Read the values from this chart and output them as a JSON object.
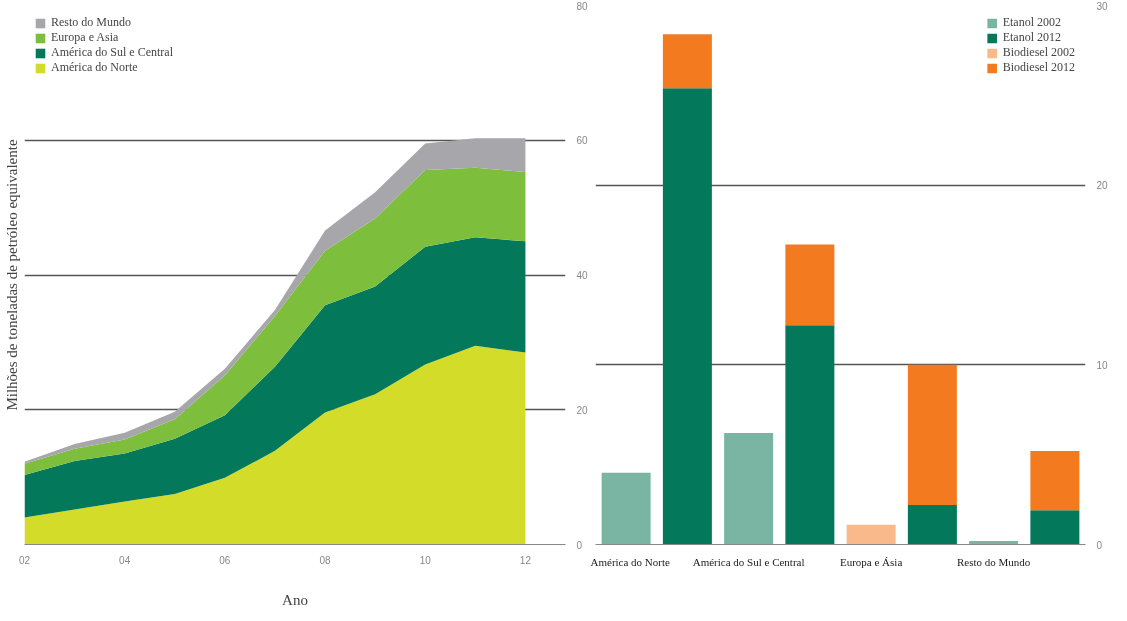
{
  "chart_data": [
    {
      "type": "area",
      "stacked": true,
      "xlabel": "Ano",
      "ylabel": "Milhões de toneladas de petróleo equivalente",
      "x": [
        2002,
        2003,
        2004,
        2005,
        2006,
        2007,
        2008,
        2009,
        2010,
        2011,
        2012
      ],
      "xlim": [
        2002,
        2012.8
      ],
      "xticks": [
        {
          "value": 2002,
          "label": "02"
        },
        {
          "value": 2004,
          "label": "04"
        },
        {
          "value": 2006,
          "label": "06"
        },
        {
          "value": 2008,
          "label": "08"
        },
        {
          "value": 2010,
          "label": "10"
        },
        {
          "value": 2012,
          "label": "12"
        }
      ],
      "ylim": [
        0,
        80
      ],
      "yticks": [
        0,
        20,
        40,
        60,
        80
      ],
      "grid": "y",
      "legend": "top left",
      "series": [
        {
          "name": "América do Norte",
          "color": "#d4dc2a",
          "values": [
            4.0,
            5.2,
            6.4,
            7.5,
            9.9,
            13.9,
            19.6,
            22.3,
            26.7,
            29.5,
            28.5
          ]
        },
        {
          "name": "América do Sul e Central",
          "color": "#04785a",
          "values": [
            6.3,
            7.2,
            7.1,
            8.2,
            9.3,
            12.5,
            15.9,
            16.0,
            17.5,
            16.1,
            16.5
          ]
        },
        {
          "name": "Europa e Asia",
          "color": "#7dbf3c",
          "values": [
            1.7,
            1.8,
            2.1,
            2.9,
            5.9,
            7.5,
            8.1,
            10.1,
            11.4,
            10.3,
            10.3
          ]
        },
        {
          "name": "Resto do Mundo",
          "color": "#a7a7ab",
          "values": [
            0.3,
            0.7,
            1.0,
            1.1,
            1.0,
            0.9,
            3.0,
            3.9,
            3.9,
            4.4,
            5.0
          ]
        }
      ]
    },
    {
      "type": "bar",
      "stacked": true,
      "categories": [
        "América do Norte",
        null,
        "América do Sul e Central",
        null,
        "Europa e Ásia",
        null,
        "Resto do Mundo",
        null
      ],
      "ylim": [
        0,
        30
      ],
      "yticks": [
        0,
        10,
        20,
        30
      ],
      "grid": "y",
      "legend": "top right",
      "series": [
        {
          "name": "Etanol 2002",
          "color": "#7ab5a3",
          "values": [
            4.0,
            null,
            6.2,
            null,
            null,
            null,
            0.2,
            null
          ]
        },
        {
          "name": "Etanol 2012",
          "color": "#04785a",
          "values": [
            null,
            25.4,
            null,
            12.2,
            null,
            2.2,
            null,
            1.9
          ]
        },
        {
          "name": "Biodiesel 2002",
          "color": "#f9b98a",
          "values": [
            null,
            null,
            null,
            null,
            1.1,
            null,
            null,
            null
          ]
        },
        {
          "name": "Biodiesel 2012",
          "color": "#f47a20",
          "values": [
            null,
            3.0,
            null,
            4.5,
            null,
            7.8,
            null,
            3.3
          ]
        }
      ]
    }
  ]
}
